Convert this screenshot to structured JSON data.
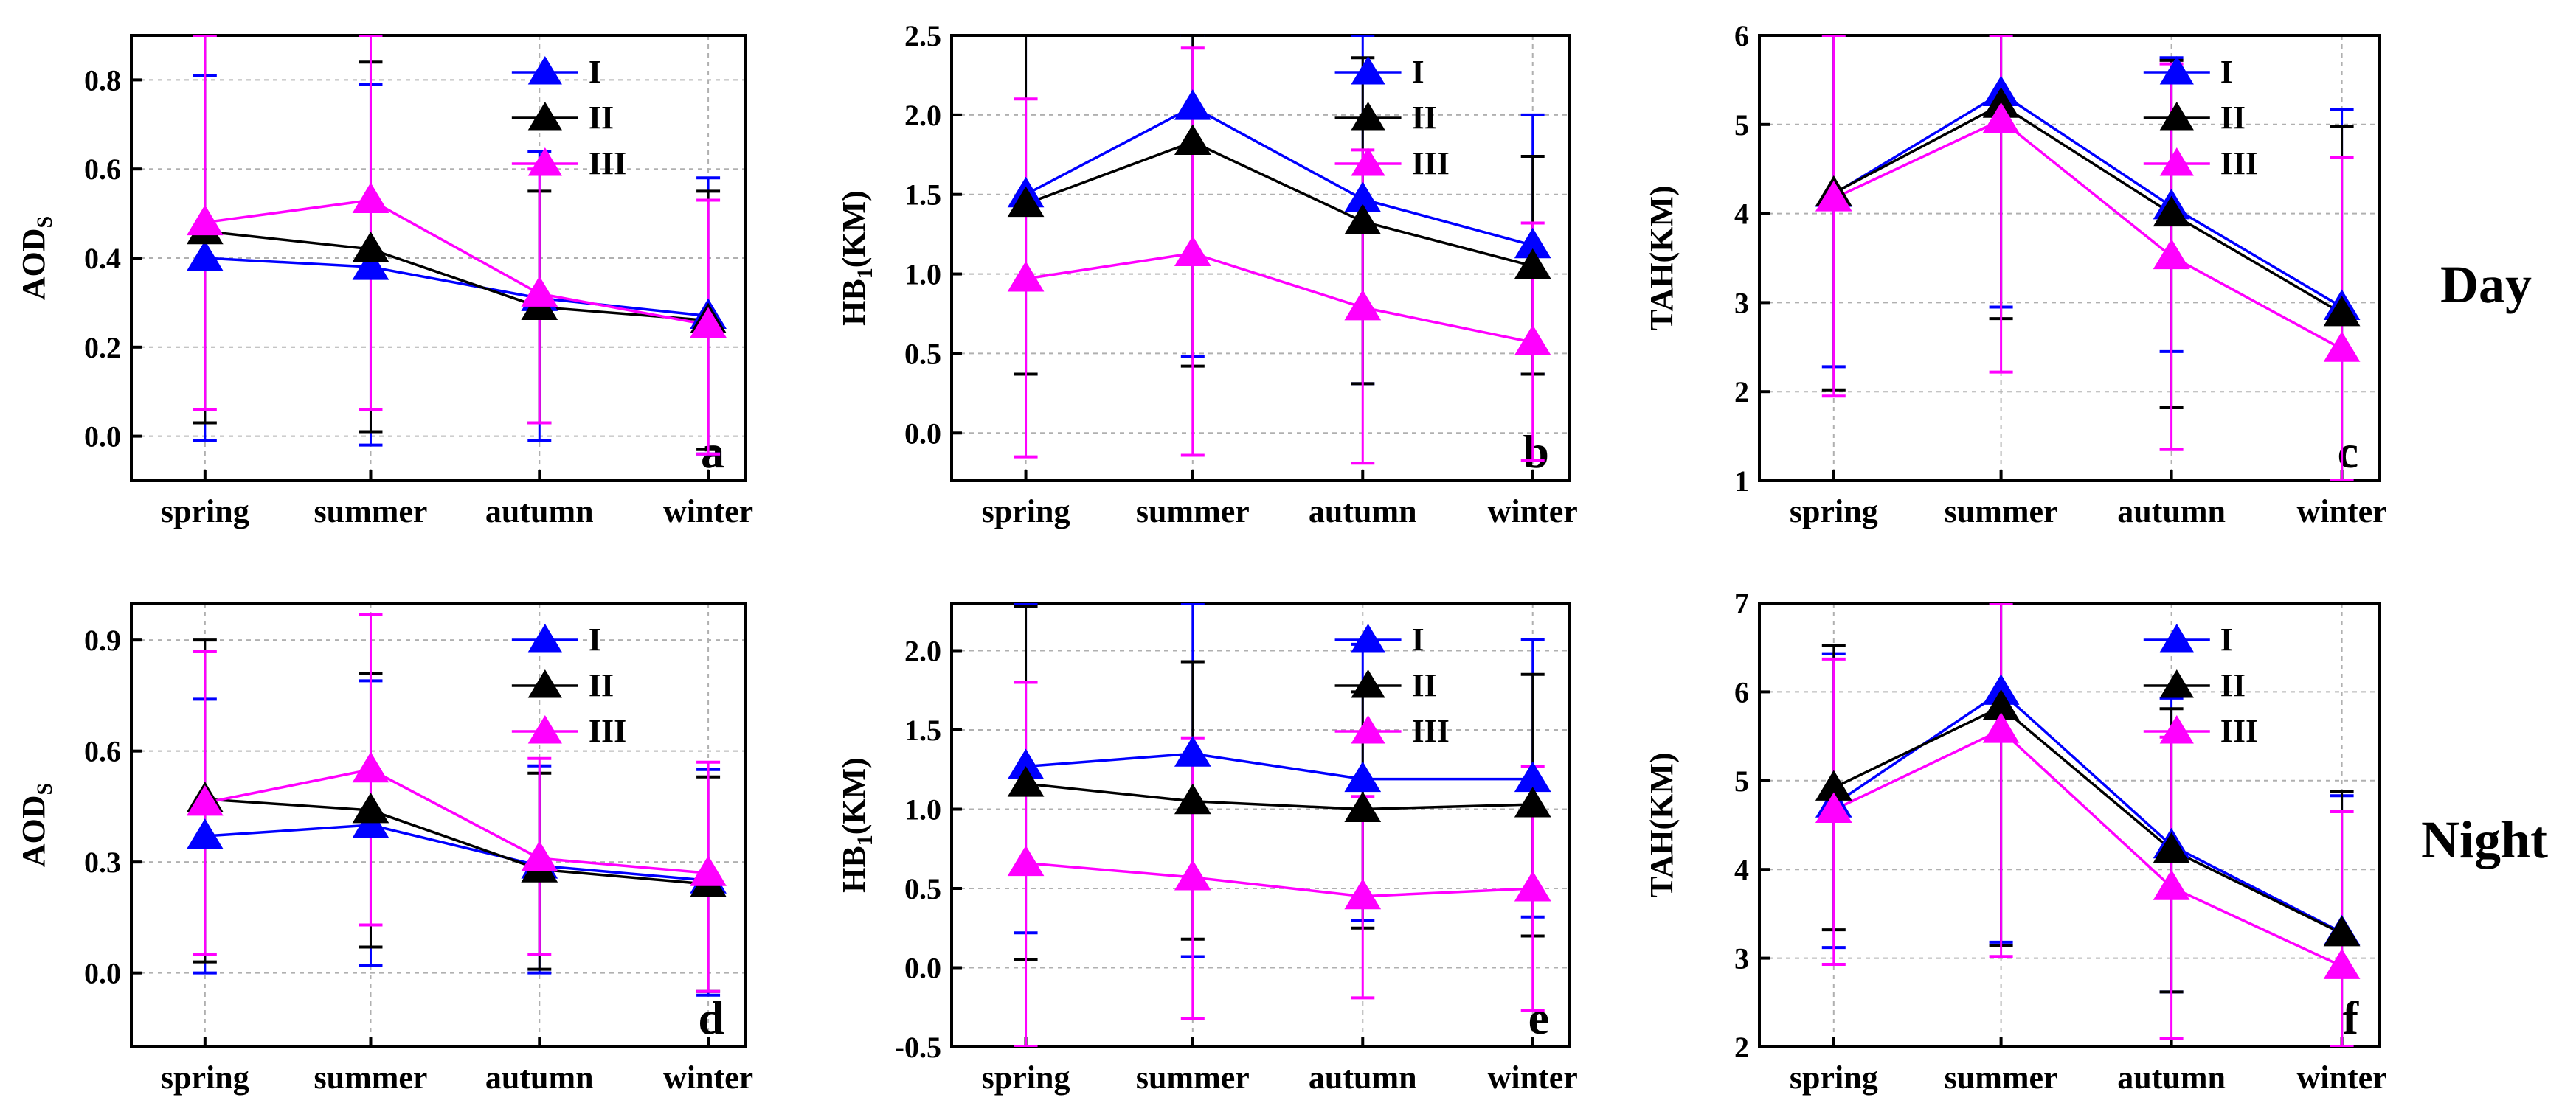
{
  "row_labels": {
    "day": "Day",
    "night": "Night"
  },
  "colors": {
    "I": "#0000ff",
    "II": "#000000",
    "III": "#ff00ff",
    "grid": "#b0b0b0"
  },
  "chart_data": [
    {
      "id": "a",
      "type": "line",
      "panel_label": "a",
      "categories": [
        "spring",
        "summer",
        "autumn",
        "winter"
      ],
      "ylabel_main": "AOD",
      "ylabel_sub": "S",
      "ylim": [
        -0.1,
        0.9
      ],
      "yticks": [
        "0.0",
        "0.2",
        "0.4",
        "0.6",
        "0.8"
      ],
      "legend": [
        "I",
        "II",
        "III"
      ],
      "series": [
        {
          "name": "I",
          "values": [
            0.4,
            0.38,
            0.31,
            0.27
          ],
          "err_low": [
            -0.01,
            -0.02,
            -0.01,
            -0.04
          ],
          "err_high": [
            0.81,
            0.79,
            0.64,
            0.58
          ]
        },
        {
          "name": "II",
          "values": [
            0.46,
            0.42,
            0.29,
            0.26
          ],
          "err_low": [
            0.03,
            0.01,
            0.03,
            -0.03
          ],
          "err_high": [
            0.9,
            0.84,
            0.55,
            0.55
          ]
        },
        {
          "name": "III",
          "values": [
            0.48,
            0.53,
            0.32,
            0.25
          ],
          "err_low": [
            0.06,
            0.06,
            0.03,
            -0.04
          ],
          "err_high": [
            0.9,
            0.9,
            0.6,
            0.53
          ]
        }
      ]
    },
    {
      "id": "b",
      "type": "line",
      "panel_label": "b",
      "categories": [
        "spring",
        "summer",
        "autumn",
        "winter"
      ],
      "ylabel_main": "HB",
      "ylabel_sub": "1",
      "ylabel_tail": "(KM)",
      "ylim": [
        -0.3,
        2.5
      ],
      "yticks": [
        "0.0",
        "0.5",
        "1.0",
        "1.5",
        "2.0",
        "2.5"
      ],
      "legend": [
        "I",
        "II",
        "III"
      ],
      "series": [
        {
          "name": "I",
          "values": [
            1.5,
            2.05,
            1.47,
            1.18
          ],
          "err_low": [
            0.37,
            0.48,
            0.31,
            0.37
          ],
          "err_high": [
            2.5,
            2.5,
            2.5,
            2.0
          ]
        },
        {
          "name": "II",
          "values": [
            1.44,
            1.83,
            1.33,
            1.05
          ],
          "err_low": [
            0.37,
            0.42,
            0.31,
            0.37
          ],
          "err_high": [
            2.5,
            2.5,
            2.36,
            1.74
          ]
        },
        {
          "name": "III",
          "values": [
            0.97,
            1.13,
            0.79,
            0.57
          ],
          "err_low": [
            -0.15,
            -0.14,
            -0.19,
            -0.17
          ],
          "err_high": [
            2.1,
            2.42,
            1.78,
            1.32
          ]
        }
      ]
    },
    {
      "id": "c",
      "type": "line",
      "panel_label": "c",
      "categories": [
        "spring",
        "summer",
        "autumn",
        "winter"
      ],
      "ylabel_main": "TAH(KM)",
      "ylim": [
        1,
        6
      ],
      "yticks": [
        "1",
        "2",
        "3",
        "4",
        "5",
        "6"
      ],
      "legend": [
        "I",
        "II",
        "III"
      ],
      "series": [
        {
          "name": "I",
          "values": [
            4.22,
            5.35,
            4.08,
            2.95
          ],
          "err_low": [
            2.28,
            2.95,
            2.45,
            1.0
          ],
          "err_high": [
            6.0,
            6.0,
            5.75,
            5.17
          ]
        },
        {
          "name": "II",
          "values": [
            4.23,
            5.22,
            4.0,
            2.88
          ],
          "err_low": [
            2.02,
            2.82,
            1.82,
            1.0
          ],
          "err_high": [
            6.0,
            6.0,
            5.72,
            4.98
          ]
        },
        {
          "name": "III",
          "values": [
            4.17,
            5.05,
            3.52,
            2.48
          ],
          "err_low": [
            1.95,
            2.22,
            1.35,
            1.0
          ],
          "err_high": [
            6.0,
            6.0,
            5.68,
            4.63
          ]
        }
      ]
    },
    {
      "id": "d",
      "type": "line",
      "panel_label": "d",
      "categories": [
        "spring",
        "summer",
        "autumn",
        "winter"
      ],
      "ylabel_main": "AOD",
      "ylabel_sub": "S",
      "ylim": [
        -0.2,
        1.0
      ],
      "yticks": [
        "0.0",
        "0.3",
        "0.6",
        "0.9"
      ],
      "legend": [
        "I",
        "II",
        "III"
      ],
      "series": [
        {
          "name": "I",
          "values": [
            0.37,
            0.4,
            0.29,
            0.25
          ],
          "err_low": [
            0.0,
            0.02,
            0.0,
            -0.06
          ],
          "err_high": [
            0.74,
            0.79,
            0.56,
            0.55
          ]
        },
        {
          "name": "II",
          "values": [
            0.47,
            0.44,
            0.28,
            0.24
          ],
          "err_low": [
            0.03,
            0.07,
            0.01,
            -0.05
          ],
          "err_high": [
            0.9,
            0.81,
            0.54,
            0.53
          ]
        },
        {
          "name": "III",
          "values": [
            0.46,
            0.55,
            0.31,
            0.27
          ],
          "err_low": [
            0.05,
            0.13,
            0.05,
            -0.05
          ],
          "err_high": [
            0.87,
            0.97,
            0.58,
            0.57
          ]
        }
      ]
    },
    {
      "id": "e",
      "type": "line",
      "panel_label": "e",
      "categories": [
        "spring",
        "summer",
        "autumn",
        "winter"
      ],
      "ylabel_main": "HB",
      "ylabel_sub": "1",
      "ylabel_tail": "(KM)",
      "ylim": [
        -0.5,
        2.3
      ],
      "yticks": [
        "-0.5",
        "0.0",
        "0.5",
        "1.0",
        "1.5",
        "2.0"
      ],
      "legend": [
        "I",
        "II",
        "III"
      ],
      "series": [
        {
          "name": "I",
          "values": [
            1.27,
            1.35,
            1.19,
            1.19
          ],
          "err_low": [
            0.22,
            0.07,
            0.3,
            0.32
          ],
          "err_high": [
            2.3,
            2.3,
            2.04,
            2.07
          ]
        },
        {
          "name": "II",
          "values": [
            1.16,
            1.05,
            1.0,
            1.03
          ],
          "err_low": [
            0.05,
            0.18,
            0.25,
            0.2
          ],
          "err_high": [
            2.28,
            1.93,
            1.74,
            1.85
          ]
        },
        {
          "name": "III",
          "values": [
            0.66,
            0.57,
            0.45,
            0.5
          ],
          "err_low": [
            -0.5,
            -0.32,
            -0.19,
            -0.27
          ],
          "err_high": [
            1.8,
            1.45,
            1.08,
            1.27
          ]
        }
      ]
    },
    {
      "id": "f",
      "type": "line",
      "panel_label": "f",
      "categories": [
        "spring",
        "summer",
        "autumn",
        "winter"
      ],
      "ylabel_main": "TAH(KM)",
      "ylim": [
        2,
        7
      ],
      "yticks": [
        "2",
        "3",
        "4",
        "5",
        "6",
        "7"
      ],
      "legend": [
        "I",
        "II",
        "III"
      ],
      "series": [
        {
          "name": "I",
          "values": [
            4.73,
            6.0,
            4.27,
            3.29
          ],
          "err_low": [
            3.12,
            3.18,
            2.62,
            2.0
          ],
          "err_high": [
            6.43,
            7.0,
            5.93,
            4.83
          ]
        },
        {
          "name": "II",
          "values": [
            4.92,
            5.83,
            4.22,
            3.28
          ],
          "err_low": [
            3.32,
            3.14,
            2.62,
            2.0
          ],
          "err_high": [
            6.52,
            7.0,
            5.81,
            4.88
          ]
        },
        {
          "name": "III",
          "values": [
            4.67,
            5.57,
            3.8,
            2.91
          ],
          "err_low": [
            2.93,
            3.02,
            2.1,
            2.0
          ],
          "err_high": [
            6.37,
            7.0,
            5.49,
            4.65
          ]
        }
      ]
    }
  ]
}
